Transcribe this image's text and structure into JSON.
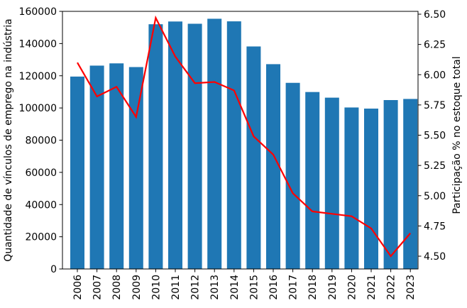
{
  "chart_data": {
    "type": "bar",
    "title": "",
    "categories": [
      "2006",
      "2007",
      "2008",
      "2009",
      "2010",
      "2011",
      "2012",
      "2013",
      "2014",
      "2015",
      "2016",
      "2017",
      "2018",
      "2019",
      "2020",
      "2021",
      "2022",
      "2023"
    ],
    "series": [
      {
        "name": "Quantidade de vínculos de emprego na indústria",
        "type": "bar",
        "axis": "left",
        "color": "#1f77b4",
        "values": [
          119500,
          126300,
          127700,
          125400,
          152000,
          153700,
          152300,
          155400,
          153800,
          138200,
          127200,
          115600,
          109900,
          106400,
          100300,
          99600,
          104900,
          105600
        ]
      },
      {
        "name": "Participação % no estoque total",
        "type": "line",
        "axis": "right",
        "color": "#ff0000",
        "values": [
          6.1,
          5.82,
          5.9,
          5.65,
          6.47,
          6.15,
          5.93,
          5.94,
          5.87,
          5.49,
          5.34,
          5.02,
          4.87,
          4.85,
          4.83,
          4.73,
          4.5,
          4.69
        ]
      }
    ],
    "left_axis": {
      "label": "Quantidade de vínculos de emprego na indústria",
      "min": 0,
      "max": 160000,
      "tick_step": 20000,
      "tick_labels": [
        "0",
        "20000",
        "40000",
        "60000",
        "80000",
        "100000",
        "120000",
        "140000",
        "160000"
      ]
    },
    "right_axis": {
      "label": "Participação % no estoque total",
      "min": 4.5,
      "max": 6.5,
      "tick_step": 0.25,
      "tick_labels": [
        "4.50",
        "4.75",
        "5.00",
        "5.25",
        "5.50",
        "5.75",
        "6.00",
        "6.25",
        "6.50"
      ]
    },
    "x_axis": {
      "tick_rotation_deg": 90
    },
    "grid": false,
    "legend_position": "none"
  },
  "colors": {
    "bar": "#1f77b4",
    "line": "#ff0000",
    "axis": "#000000",
    "background": "#ffffff"
  }
}
